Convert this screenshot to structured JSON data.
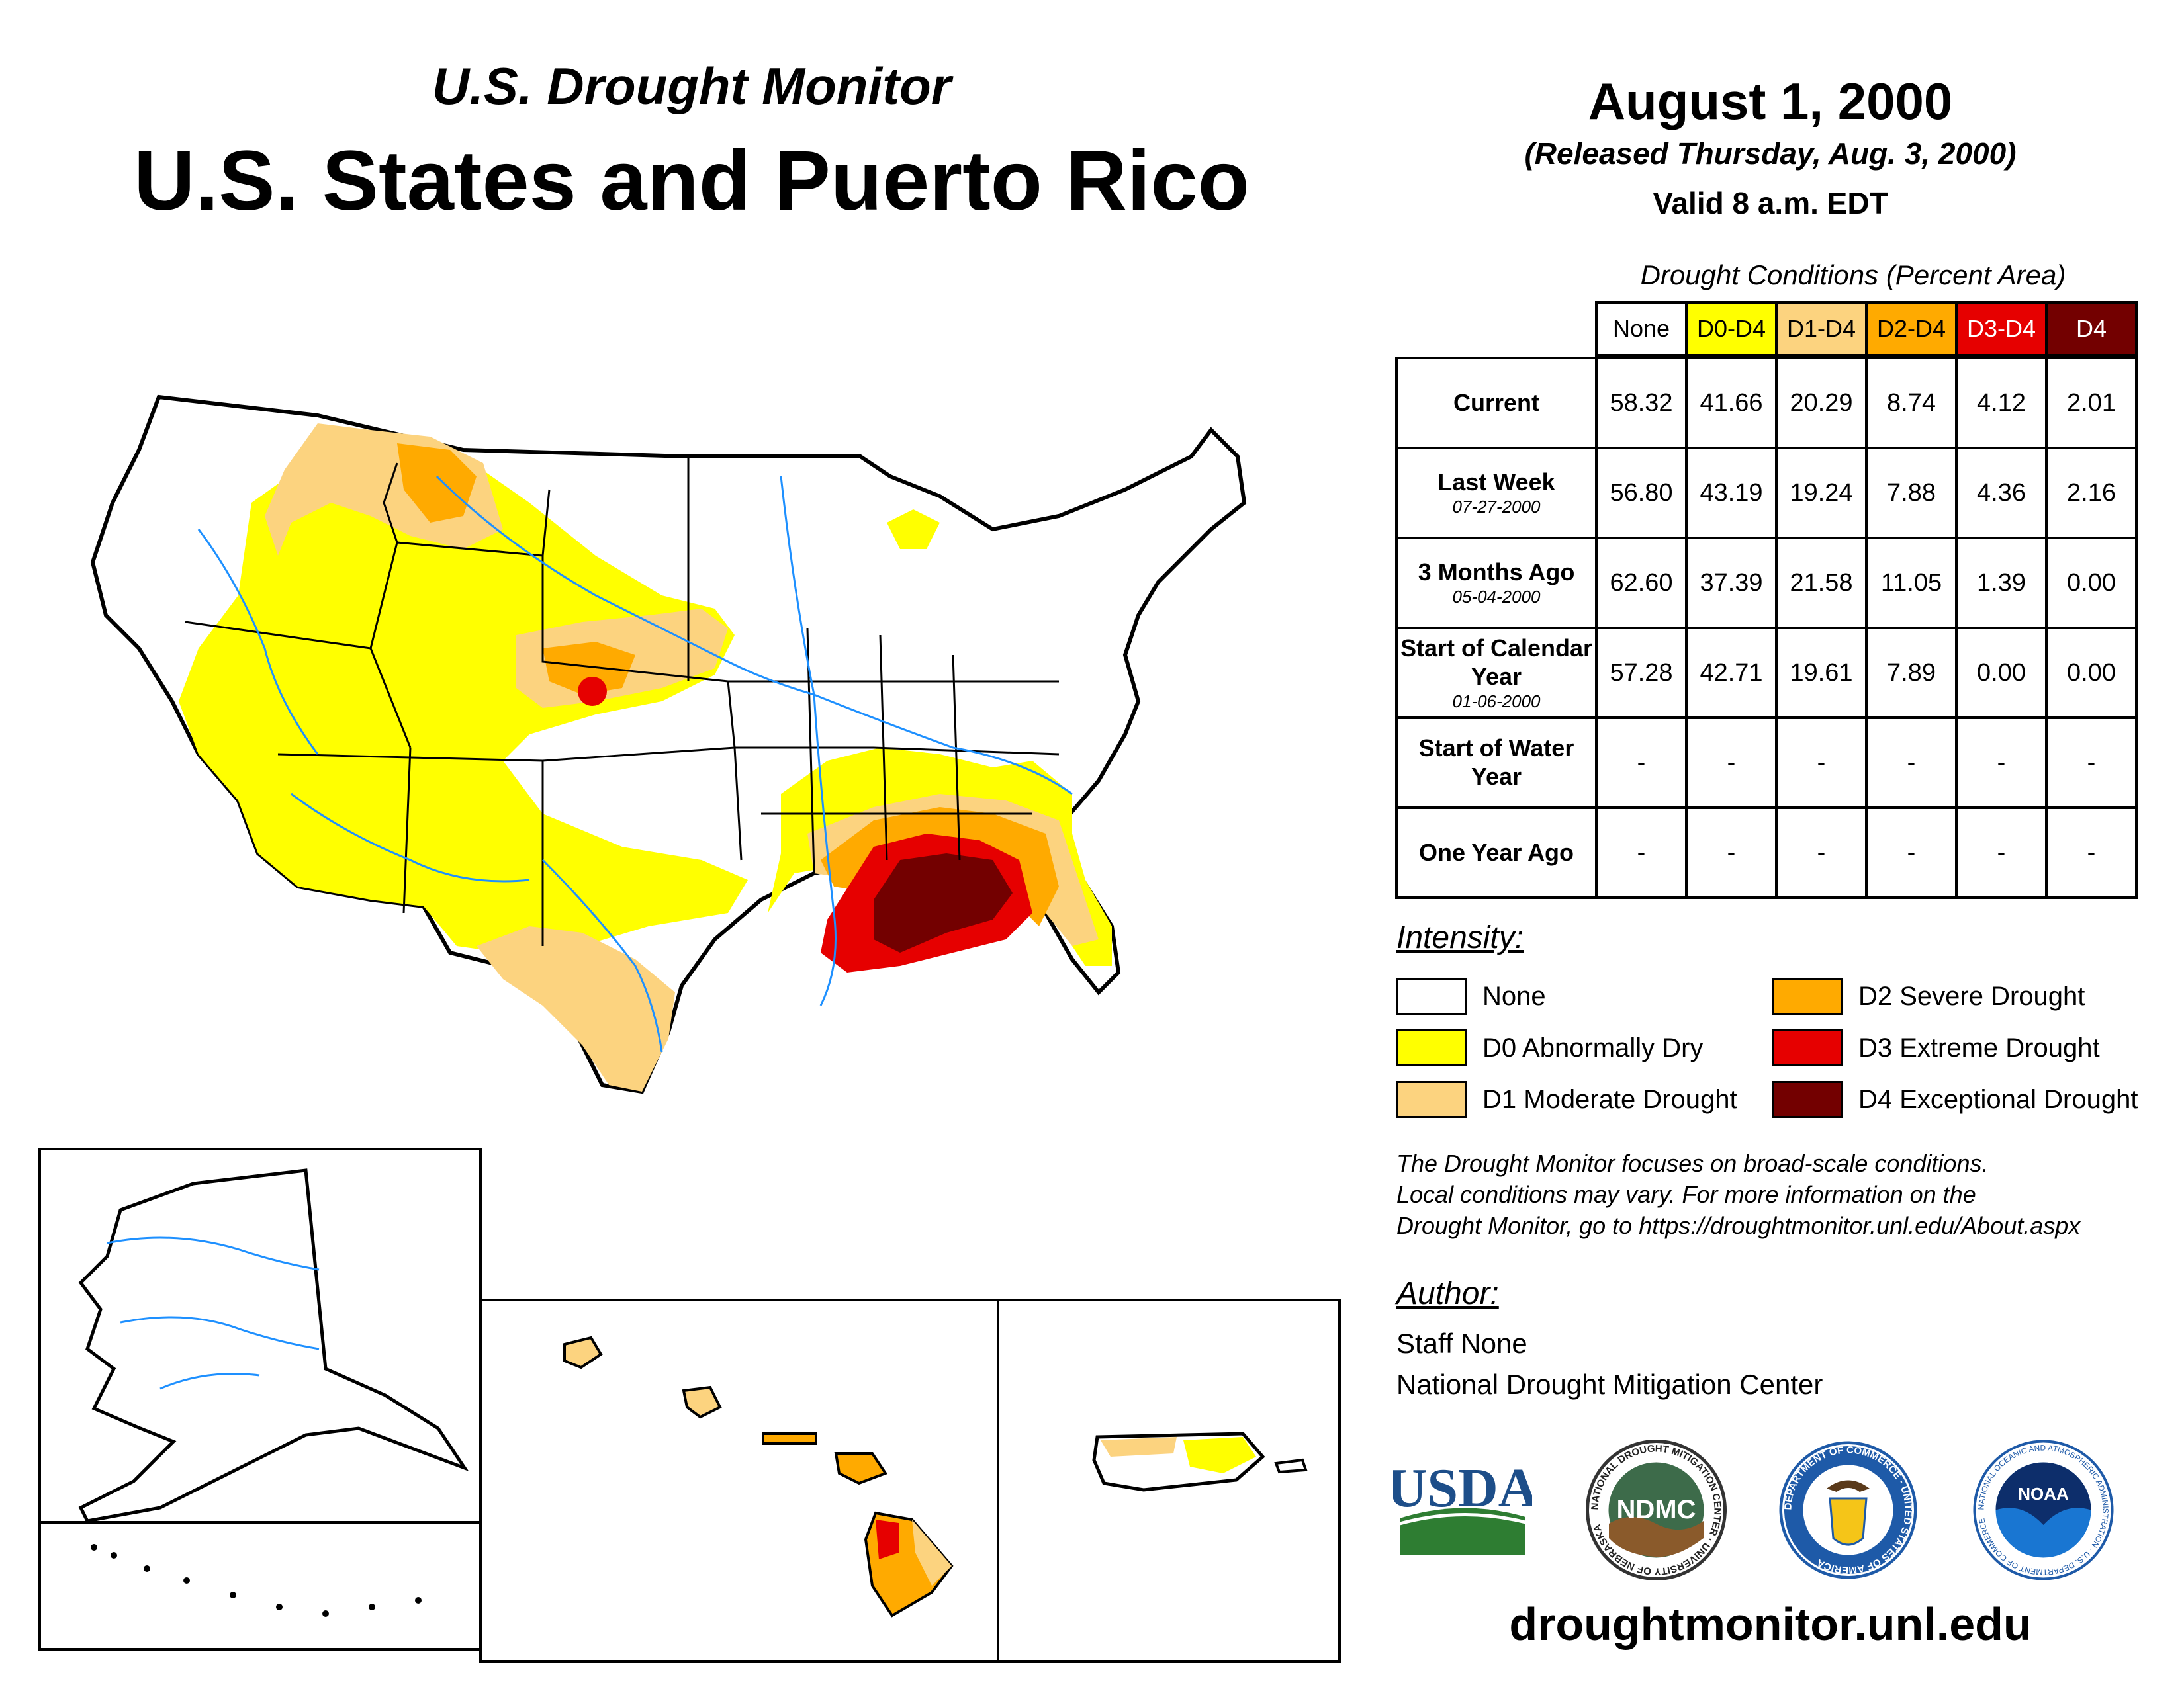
{
  "header": {
    "subtitle": "U.S. Drought Monitor",
    "title": "U.S. States and Puerto Rico",
    "map_date": "August 1, 2000",
    "released": "(Released Thursday, Aug. 3, 2000)",
    "valid": "Valid 8 a.m. EDT"
  },
  "table": {
    "caption": "Drought Conditions (Percent Area)",
    "columns": [
      "None",
      "D0-D4",
      "D1-D4",
      "D2-D4",
      "D3-D4",
      "D4"
    ],
    "column_colors": [
      "#ffffff",
      "#ffff00",
      "#fcd37f",
      "#ffaa00",
      "#e60000",
      "#730000"
    ],
    "rows": [
      {
        "label": "Current",
        "date": "",
        "values": [
          "58.32",
          "41.66",
          "20.29",
          "8.74",
          "4.12",
          "2.01"
        ]
      },
      {
        "label": "Last Week",
        "date": "07-27-2000",
        "values": [
          "56.80",
          "43.19",
          "19.24",
          "7.88",
          "4.36",
          "2.16"
        ]
      },
      {
        "label": "3 Months Ago",
        "date": "05-04-2000",
        "values": [
          "62.60",
          "37.39",
          "21.58",
          "11.05",
          "1.39",
          "0.00"
        ]
      },
      {
        "label": "Start of Calendar Year",
        "date": "01-06-2000",
        "values": [
          "57.28",
          "42.71",
          "19.61",
          "7.89",
          "0.00",
          "0.00"
        ]
      },
      {
        "label": "Start of Water Year",
        "date": "",
        "values": [
          "-",
          "-",
          "-",
          "-",
          "-",
          "-"
        ]
      },
      {
        "label": "One Year Ago",
        "date": "",
        "values": [
          "-",
          "-",
          "-",
          "-",
          "-",
          "-"
        ]
      }
    ]
  },
  "legend": {
    "title": "Intensity:",
    "items": [
      {
        "label": "None",
        "color": "#ffffff"
      },
      {
        "label": "D0 Abnormally Dry",
        "color": "#ffff00"
      },
      {
        "label": "D1 Moderate Drought",
        "color": "#fcd37f"
      },
      {
        "label": "D2 Severe Drought",
        "color": "#ffaa00"
      },
      {
        "label": "D3 Extreme Drought",
        "color": "#e60000"
      },
      {
        "label": "D4 Exceptional Drought",
        "color": "#730000"
      }
    ]
  },
  "note": {
    "line1": "The Drought Monitor focuses on broad-scale conditions.",
    "line2": "Local conditions may vary. For more information on the",
    "line3": "Drought Monitor, go to https://droughtmonitor.unl.edu/About.aspx"
  },
  "author": {
    "heading": "Author:",
    "name": "Staff None",
    "org": "National Drought Mitigation Center"
  },
  "logos": {
    "usda": "USDA",
    "ndmc": "NDMC",
    "ndmc_ring": "NATIONAL DROUGHT MITIGATION CENTER · UNIVERSITY OF NEBRASKA",
    "doc_ring": "DEPARTMENT OF COMMERCE · UNITED STATES OF AMERICA",
    "noaa": "NOAA",
    "noaa_ring": "NATIONAL OCEANIC AND ATMOSPHERIC ADMINISTRATION · U.S. DEPARTMENT OF COMMERCE"
  },
  "footer": {
    "url": "droughtmonitor.unl.edu"
  }
}
